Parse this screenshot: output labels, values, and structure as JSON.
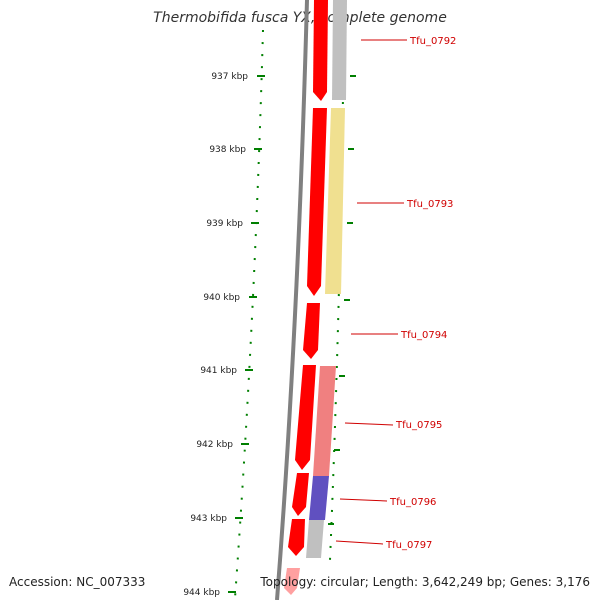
{
  "title": "Thermobifida fusca YX, complete genome",
  "accession_label": "Accession: NC_007333",
  "topology_label": "Topology: circular; Length: 3,642,249 bp; Genes: 3,176",
  "kbp_ticks": [
    "937 kbp",
    "938 kbp",
    "939 kbp",
    "940 kbp",
    "941 kbp",
    "942 kbp",
    "943 kbp",
    "944 kbp"
  ],
  "genes": [
    "Tfu_0792",
    "Tfu_0793",
    "Tfu_0794",
    "Tfu_0795",
    "Tfu_0796",
    "Tfu_0797"
  ],
  "colors": {
    "gene_arrow": "#ff0000",
    "backbone": "#808080",
    "tick": "#007f00",
    "label": "#d00000",
    "gray_band": "#c0c0c0",
    "yellow_band": "#f0e090",
    "pink_band": "#f08080",
    "blue_band": "#6050c0"
  }
}
